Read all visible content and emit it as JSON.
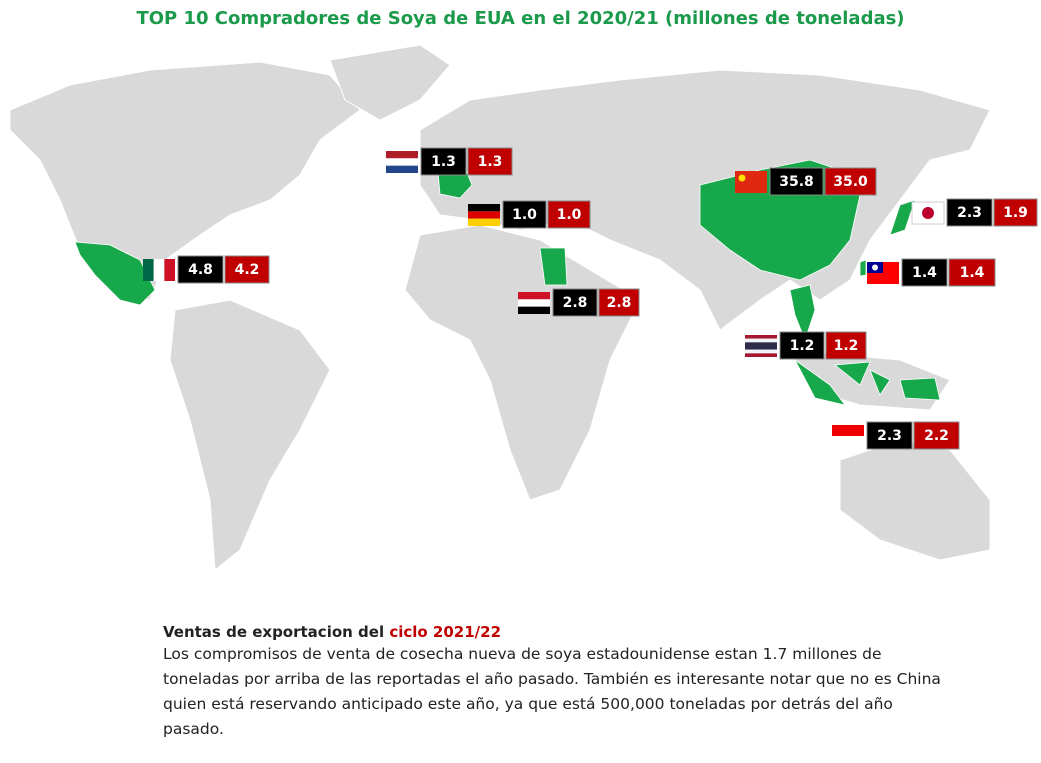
{
  "header": {
    "title": "TOP 10 Compradores de Soya de EUA en el 2020/21 (millones de toneladas)"
  },
  "markers": [
    {
      "values": [
        "1.3",
        "1.3"
      ]
    },
    {
      "values": [
        "4.8",
        "4.2"
      ]
    },
    {
      "values": [
        "1.0",
        "1.0"
      ]
    },
    {
      "values": [
        "2.8",
        "2.8"
      ]
    },
    {
      "values": [
        "35.8",
        "35.0"
      ]
    },
    {
      "values": [
        "2.3",
        "1.9"
      ]
    },
    {
      "values": [
        "1.4",
        "1.4"
      ]
    },
    {
      "values": [
        "1.2",
        "1.2"
      ]
    },
    {
      "values": [
        "2.3",
        "2.2"
      ]
    }
  ],
  "footer": {
    "heading": "Ventas de exportacion del ",
    "heading_highlight": "ciclo 2021/22",
    "body": "Los compromisos de venta de cosecha nueva de soya estadounidense estan 1.7 millones de toneladas por arriba de las reportadas el año pasado. También es interesante notar que no es China quien está reservando anticipado este año, ya que está 500,000 toneladas por detrás del año pasado."
  }
}
